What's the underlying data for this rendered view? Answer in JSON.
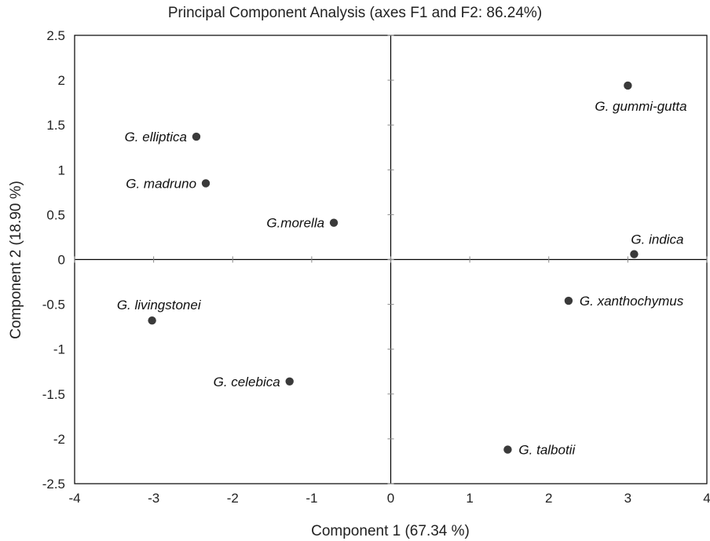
{
  "chart_data": {
    "type": "scatter",
    "title": "Principal Component Analysis (axes F1 and F2: 86.24%)",
    "xlabel": "Component 1 (67.34 %)",
    "ylabel": "Component 2 (18.90 %)",
    "xlim": [
      -4,
      4
    ],
    "ylim": [
      -2.5,
      2.5
    ],
    "xticks": [
      -4,
      -3,
      -2,
      -1,
      0,
      1,
      2,
      3,
      4
    ],
    "yticks": [
      -2.5,
      -2,
      -1.5,
      -1,
      -0.5,
      0,
      0.5,
      1,
      1.5,
      2,
      2.5
    ],
    "grid": false,
    "point_color": "#3a3a3a",
    "points": [
      {
        "label": "G. gummi-gutta",
        "x": 3.0,
        "y": 1.94,
        "label_pos": "below-right"
      },
      {
        "label": "G. elliptica",
        "x": -2.46,
        "y": 1.37,
        "label_pos": "left"
      },
      {
        "label": "G. madruno",
        "x": -2.34,
        "y": 0.85,
        "label_pos": "left"
      },
      {
        "label": "G.morella",
        "x": -0.72,
        "y": 0.41,
        "label_pos": "left"
      },
      {
        "label": "G. indica",
        "x": 3.08,
        "y": 0.06,
        "label_pos": "above-right"
      },
      {
        "label": "G. xanthochymus",
        "x": 2.25,
        "y": -0.46,
        "label_pos": "right"
      },
      {
        "label": "G. livingstonei",
        "x": -3.02,
        "y": -0.68,
        "label_pos": "above-left"
      },
      {
        "label": "G. celebica",
        "x": -1.28,
        "y": -1.36,
        "label_pos": "left"
      },
      {
        "label": "G. talbotii",
        "x": 1.48,
        "y": -2.12,
        "label_pos": "right"
      }
    ]
  }
}
